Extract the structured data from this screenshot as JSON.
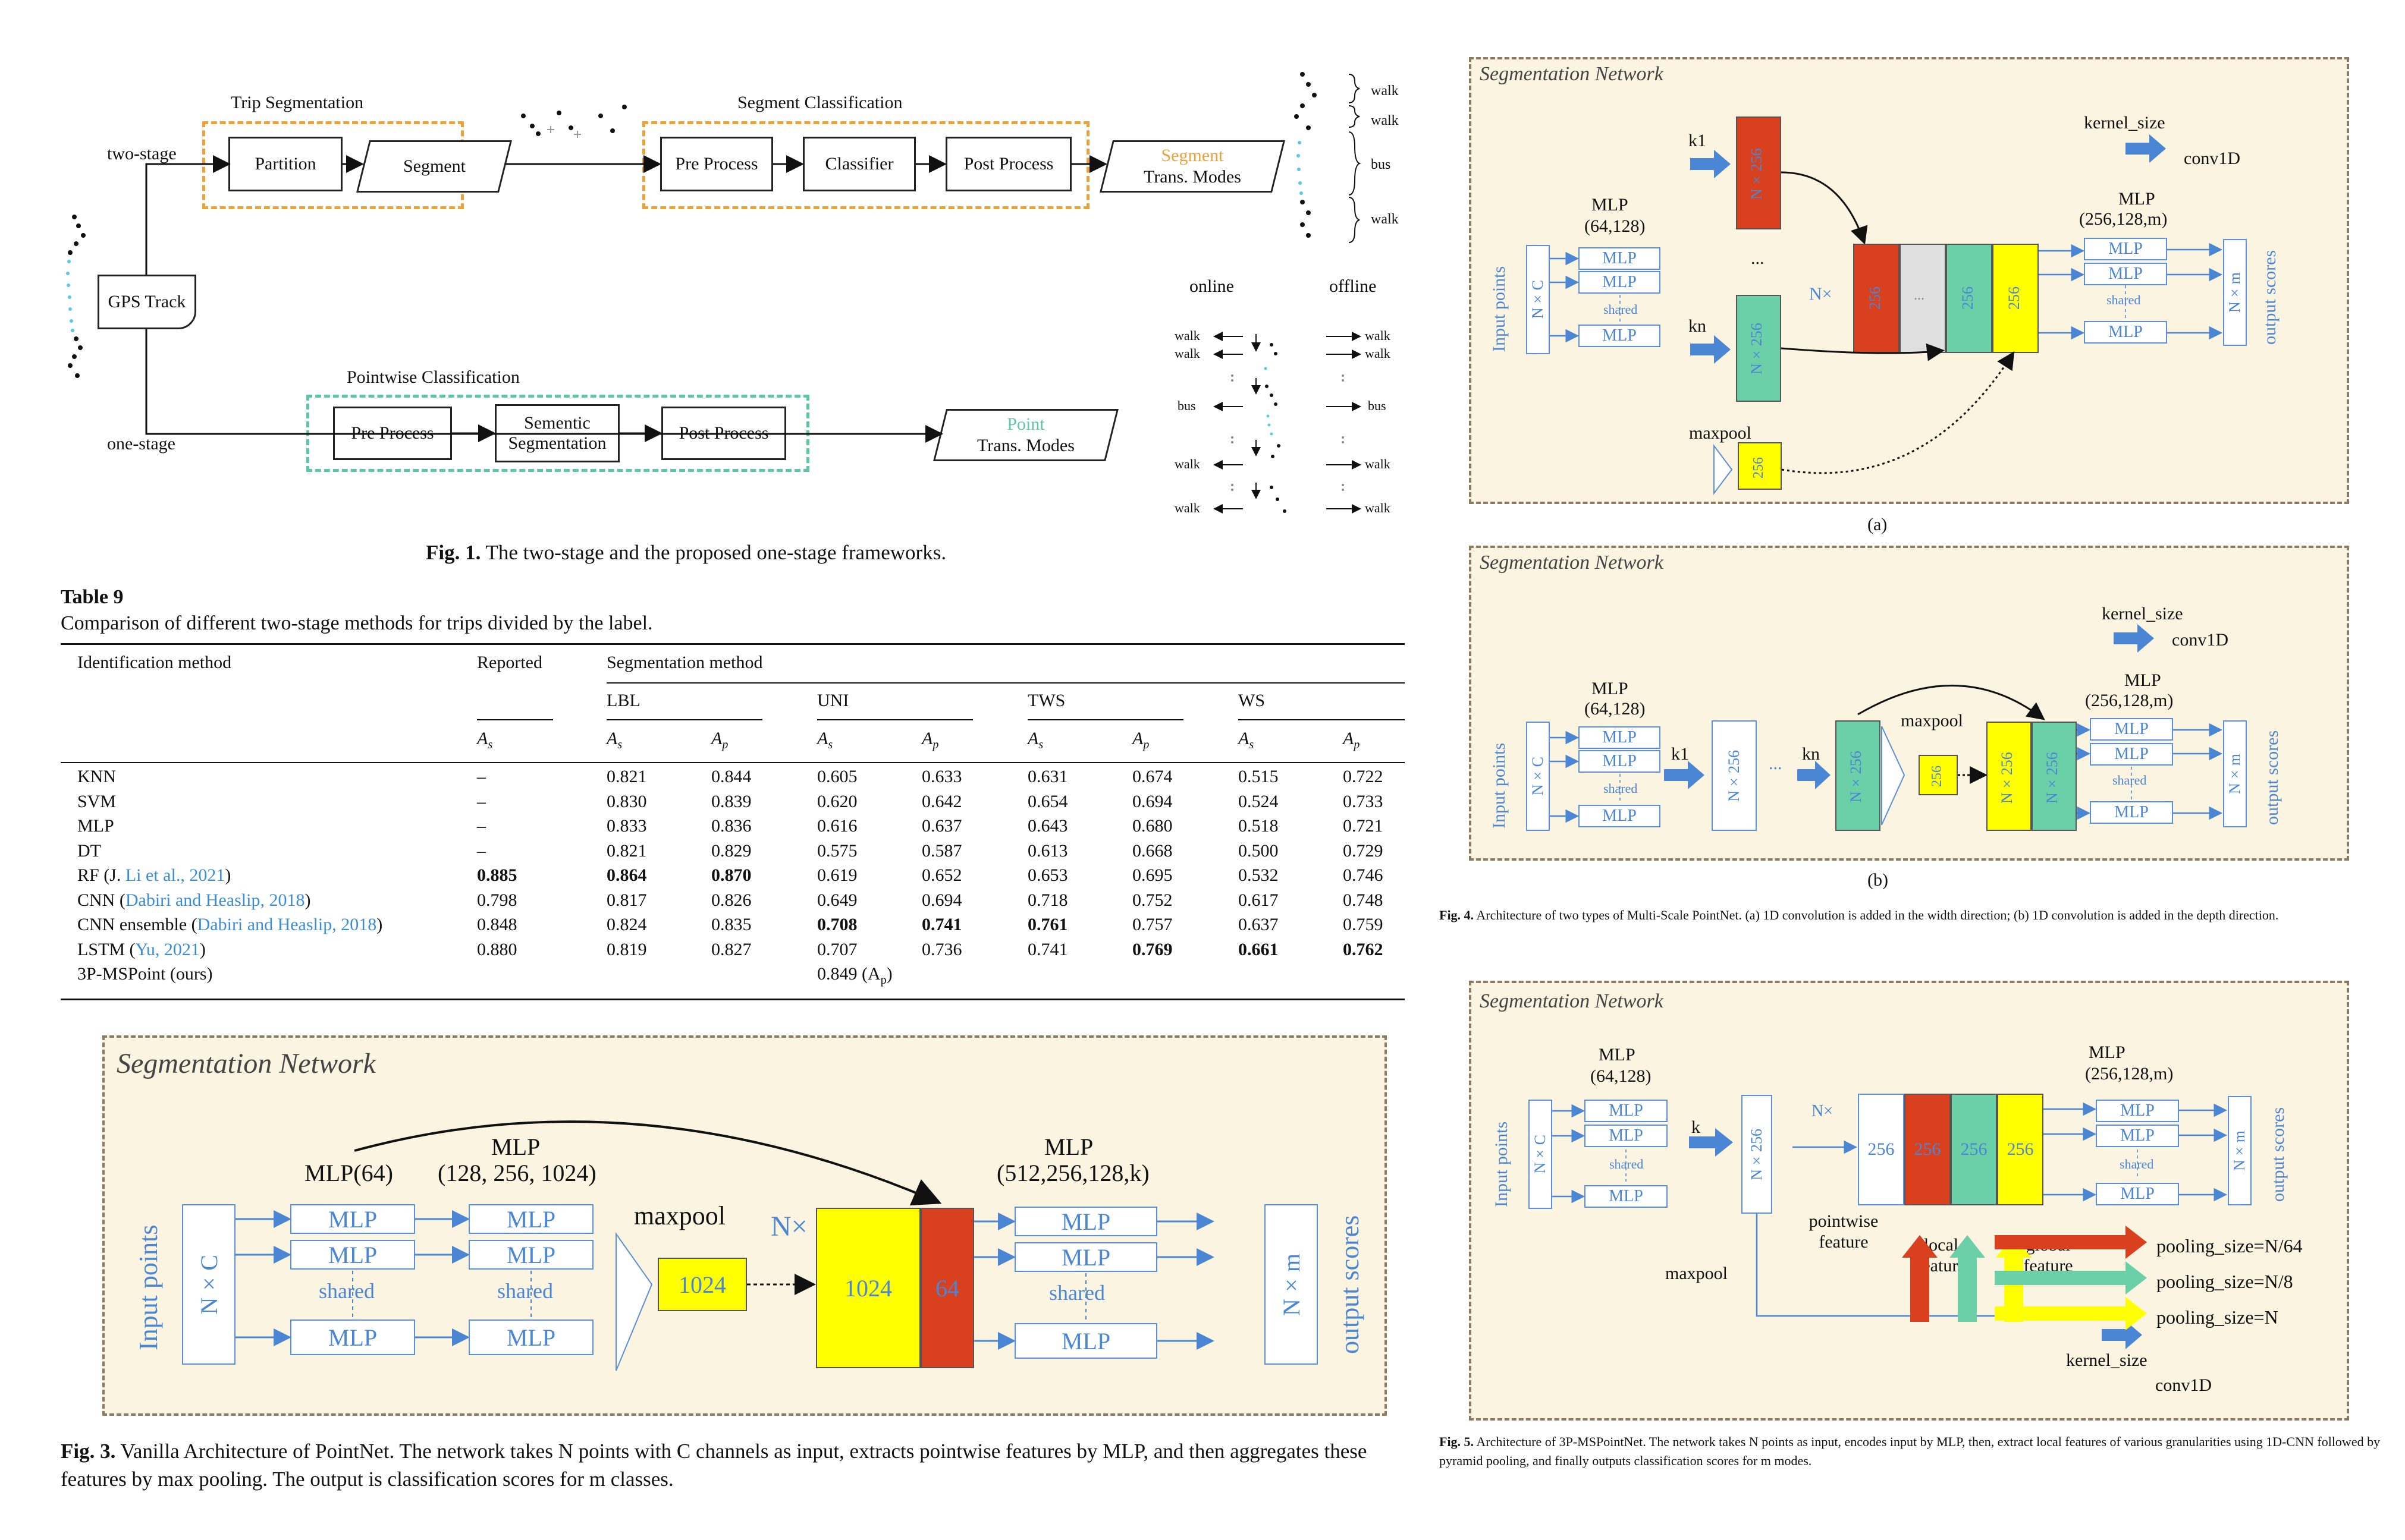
{
  "fig1": {
    "trip_segmentation": "Trip Segmentation",
    "segment_classification": "Segment Classification",
    "pointwise_classification": "Pointwise Classification",
    "two_stage": "two-stage",
    "one_stage": "one-stage",
    "gps_track": "GPS Track",
    "partition": "Partition",
    "segment": "Segment",
    "pre_process": "Pre Process",
    "classifier": "Classifier",
    "post_process": "Post Process",
    "segment_out_1": "Segment",
    "segment_out_2": "Trans. Modes",
    "semantic_seg": "Sementic Segmentation",
    "point_out_1": "Point",
    "point_out_2": "Trans. Modes",
    "right_labels": [
      "walk",
      "walk",
      "bus",
      "walk"
    ],
    "online": "online",
    "offline": "offline",
    "online_labels": [
      "walk",
      "walk",
      "bus",
      "walk",
      "walk"
    ],
    "offline_labels": [
      "walk",
      "walk",
      "bus",
      "walk",
      "walk"
    ],
    "caption_label": "Fig. 1.",
    "caption_text": "The two-stage and the proposed one-stage frameworks."
  },
  "table9": {
    "label": "Table 9",
    "caption": "Comparison of different two-stage methods for trips divided by the label.",
    "h_identification": "Identification method",
    "h_reported": "Reported",
    "h_segmentation": "Segmentation method",
    "groups": [
      "LBL",
      "UNI",
      "TWS",
      "WS"
    ],
    "sub_as": "A",
    "sub_s": "s",
    "sub_p": "p",
    "rows": [
      {
        "name": "KNN",
        "cite": "",
        "tail": "",
        "rep": "–",
        "vals": [
          "0.821",
          "0.844",
          "0.605",
          "0.633",
          "0.631",
          "0.674",
          "0.515",
          "0.722"
        ],
        "bold": []
      },
      {
        "name": "SVM",
        "cite": "",
        "tail": "",
        "rep": "–",
        "vals": [
          "0.830",
          "0.839",
          "0.620",
          "0.642",
          "0.654",
          "0.694",
          "0.524",
          "0.733"
        ],
        "bold": []
      },
      {
        "name": "MLP",
        "cite": "",
        "tail": "",
        "rep": "–",
        "vals": [
          "0.833",
          "0.836",
          "0.616",
          "0.637",
          "0.643",
          "0.680",
          "0.518",
          "0.721"
        ],
        "bold": []
      },
      {
        "name": "DT",
        "cite": "",
        "tail": "",
        "rep": "–",
        "vals": [
          "0.821",
          "0.829",
          "0.575",
          "0.587",
          "0.613",
          "0.668",
          "0.500",
          "0.729"
        ],
        "bold": []
      },
      {
        "name": "RF (J. ",
        "cite": "Li et al., 2021",
        "tail": ")",
        "rep": "0.885",
        "vals": [
          "0.864",
          "0.870",
          "0.619",
          "0.652",
          "0.653",
          "0.695",
          "0.532",
          "0.746"
        ],
        "bold": [
          "rep",
          0,
          1
        ]
      },
      {
        "name": "CNN (",
        "cite": "Dabiri and Heaslip, 2018",
        "tail": ")",
        "rep": "0.798",
        "vals": [
          "0.817",
          "0.826",
          "0.649",
          "0.694",
          "0.718",
          "0.752",
          "0.617",
          "0.748"
        ],
        "bold": []
      },
      {
        "name": "CNN ensemble (",
        "cite": "Dabiri and Heaslip, 2018",
        "tail": ")",
        "rep": "0.848",
        "vals": [
          "0.824",
          "0.835",
          "0.708",
          "0.741",
          "0.761",
          "0.757",
          "0.637",
          "0.759"
        ],
        "bold": [
          2,
          3,
          4
        ]
      },
      {
        "name": "LSTM (",
        "cite": "Yu, 2021",
        "tail": ")",
        "rep": "0.880",
        "vals": [
          "0.819",
          "0.827",
          "0.707",
          "0.736",
          "0.741",
          "0.769",
          "0.661",
          "0.762"
        ],
        "bold": [
          5,
          6,
          7
        ]
      },
      {
        "name": "3P-MSPoint (ours)",
        "cite": "",
        "tail": "",
        "rep": "",
        "vals": [],
        "bold": []
      }
    ],
    "ours_value": "0.849 (A",
    "ours_value_tail": ")"
  },
  "fig3": {
    "title": "Segmentation Network",
    "input_points": "Input points",
    "nxc": "N×C",
    "mlp64": "MLP(64)",
    "mlp_head": "MLP",
    "mlp_mid": "(128, 256, 1024)",
    "mlp": "MLP",
    "shared": "shared",
    "maxpool": "maxpool",
    "v1024": "1024",
    "nx": "N×",
    "v64": "64",
    "mlp_right": "(512,256,128,k)",
    "nxm": "N×m",
    "output_scores": "output scores",
    "caption_label": "Fig. 3.",
    "caption_text": "Vanilla Architecture of PointNet. The network takes N points with C channels as input, extracts pointwise features by MLP, and then aggregates these features by max pooling. The output is classification scores for m classes."
  },
  "fig4a": {
    "title": "Segmentation Network",
    "k1": "k1",
    "kn": "kn",
    "maxpool": "maxpool",
    "kernel_size": "kernel_size",
    "conv1d": "conv1D",
    "mlp": "MLP",
    "mlp_left": "(64,128)",
    "mlp_right": "(256,128,m)",
    "shared": "shared",
    "n256": "N×256",
    "v256": "256",
    "dots": "...",
    "nx": "N×",
    "nxc": "N×C",
    "nxm": "N×m",
    "input_points": "Input points",
    "output_scores": "output scores",
    "sub": "(a)"
  },
  "fig4b": {
    "title": "Segmentation Network",
    "sub": "(b)",
    "dots": "..."
  },
  "fig4_caption": {
    "label": "Fig. 4.",
    "text": "Architecture of two types of Multi-Scale PointNet. (a) 1D convolution is added in the width direction; (b) 1D convolution is added in the depth direction."
  },
  "fig5": {
    "title": "Segmentation Network",
    "k": "k",
    "maxpool": "maxpool",
    "pointwise_feature": "pointwise feature",
    "local_feature": "local feature",
    "global_feature": "global feature",
    "pool1": "pooling_size=N/64",
    "pool2": "pooling_size=N/8",
    "pool3": "pooling_size=N",
    "kernel_size": "kernel_size",
    "conv1d": "conv1D",
    "caption_label": "Fig. 5.",
    "caption_text": "Architecture of 3P-MSPointNet. The network takes N points as input, encodes input by MLP, then, extract local features of various granularities using 1D-CNN followed by pyramid pooling, and finally outputs classification scores for m modes."
  },
  "colors": {
    "orange": "#e8a33c",
    "teal": "#5cc7a6",
    "red": "#d9401e",
    "yellow": "#ffff00",
    "blue": "#4a86d4",
    "panel": "#fbf4e1",
    "cite": "#3b8ed6"
  }
}
